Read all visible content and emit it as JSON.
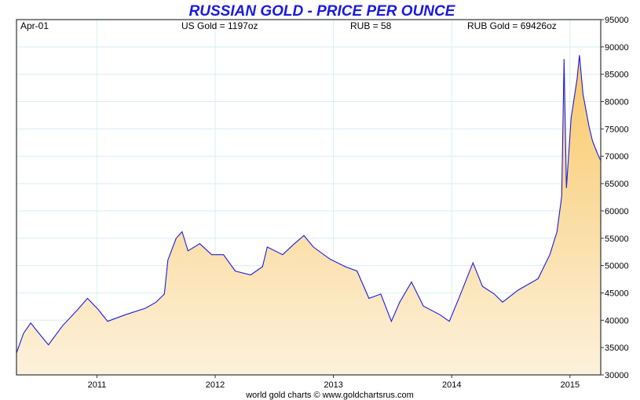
{
  "chart_data": {
    "type": "area",
    "title": "RUSSIAN GOLD - PRICE PER OUNCE",
    "header": {
      "date": "Apr-01",
      "us_gold": "US Gold = 1197oz",
      "rub": "RUB = 58",
      "rub_gold": "RUB Gold = 69426oz"
    },
    "credit": "world gold charts © www.goldchartsrus.com",
    "xlabel": "",
    "ylabel": "",
    "xlim": [
      2010.32,
      2015.26
    ],
    "ylim": [
      30000,
      95000
    ],
    "x_ticks": [
      2011,
      2012,
      2013,
      2014,
      2015
    ],
    "x_tick_labels": [
      "2011",
      "2012",
      "2013",
      "2014",
      "2015"
    ],
    "y_ticks": [
      30000,
      35000,
      40000,
      45000,
      50000,
      55000,
      60000,
      65000,
      70000,
      75000,
      80000,
      85000,
      90000,
      95000
    ],
    "y_tick_labels": [
      "30000",
      "35000",
      "40000",
      "45000",
      "50000",
      "55000",
      "60000",
      "65000",
      "70000",
      "75000",
      "80000",
      "85000",
      "90000",
      "95000"
    ],
    "y_axis_side": "right",
    "grid": true,
    "colors": {
      "line": "#1a1ae6",
      "fill_top": "#f8c867",
      "fill_bottom": "#fdf1dc",
      "grid": "#d8eef5",
      "title": "#1a1adb"
    },
    "series": [
      {
        "x": [
          2010.32,
          2010.38,
          2010.44,
          2010.51,
          2010.59,
          2010.71,
          2010.84,
          2010.92,
          2011.01,
          2011.09,
          2011.24,
          2011.41,
          2011.5,
          2011.57,
          2011.6,
          2011.67,
          2011.72,
          2011.77,
          2011.87,
          2011.97,
          2012.07,
          2012.17,
          2012.3,
          2012.4,
          2012.44,
          2012.57,
          2012.67,
          2012.75,
          2012.83,
          2012.97,
          2013.1,
          2013.2,
          2013.3,
          2013.4,
          2013.49,
          2013.56,
          2013.66,
          2013.76,
          2013.9,
          2013.98,
          2014.06,
          2014.18,
          2014.26,
          2014.36,
          2014.43,
          2014.56,
          2014.73,
          2014.83,
          2014.89,
          2014.93,
          2014.95,
          2014.97,
          2015.01,
          2015.06,
          2015.08,
          2015.11,
          2015.16,
          2015.19,
          2015.23,
          2015.26
        ],
        "y": [
          34000,
          37600,
          39500,
          37600,
          35500,
          39000,
          42000,
          44000,
          42000,
          39800,
          41000,
          42200,
          43300,
          44800,
          51000,
          55000,
          56200,
          52700,
          54000,
          52000,
          52000,
          49000,
          48300,
          49800,
          53400,
          52000,
          54000,
          55500,
          53400,
          51200,
          49800,
          49000,
          44000,
          44800,
          39800,
          43300,
          47000,
          42600,
          41000,
          39800,
          44000,
          50500,
          46200,
          44800,
          43300,
          45500,
          47600,
          52000,
          56200,
          62700,
          87800,
          64200,
          77000,
          84200,
          88500,
          81400,
          75600,
          72800,
          70600,
          69200
        ]
      }
    ]
  }
}
